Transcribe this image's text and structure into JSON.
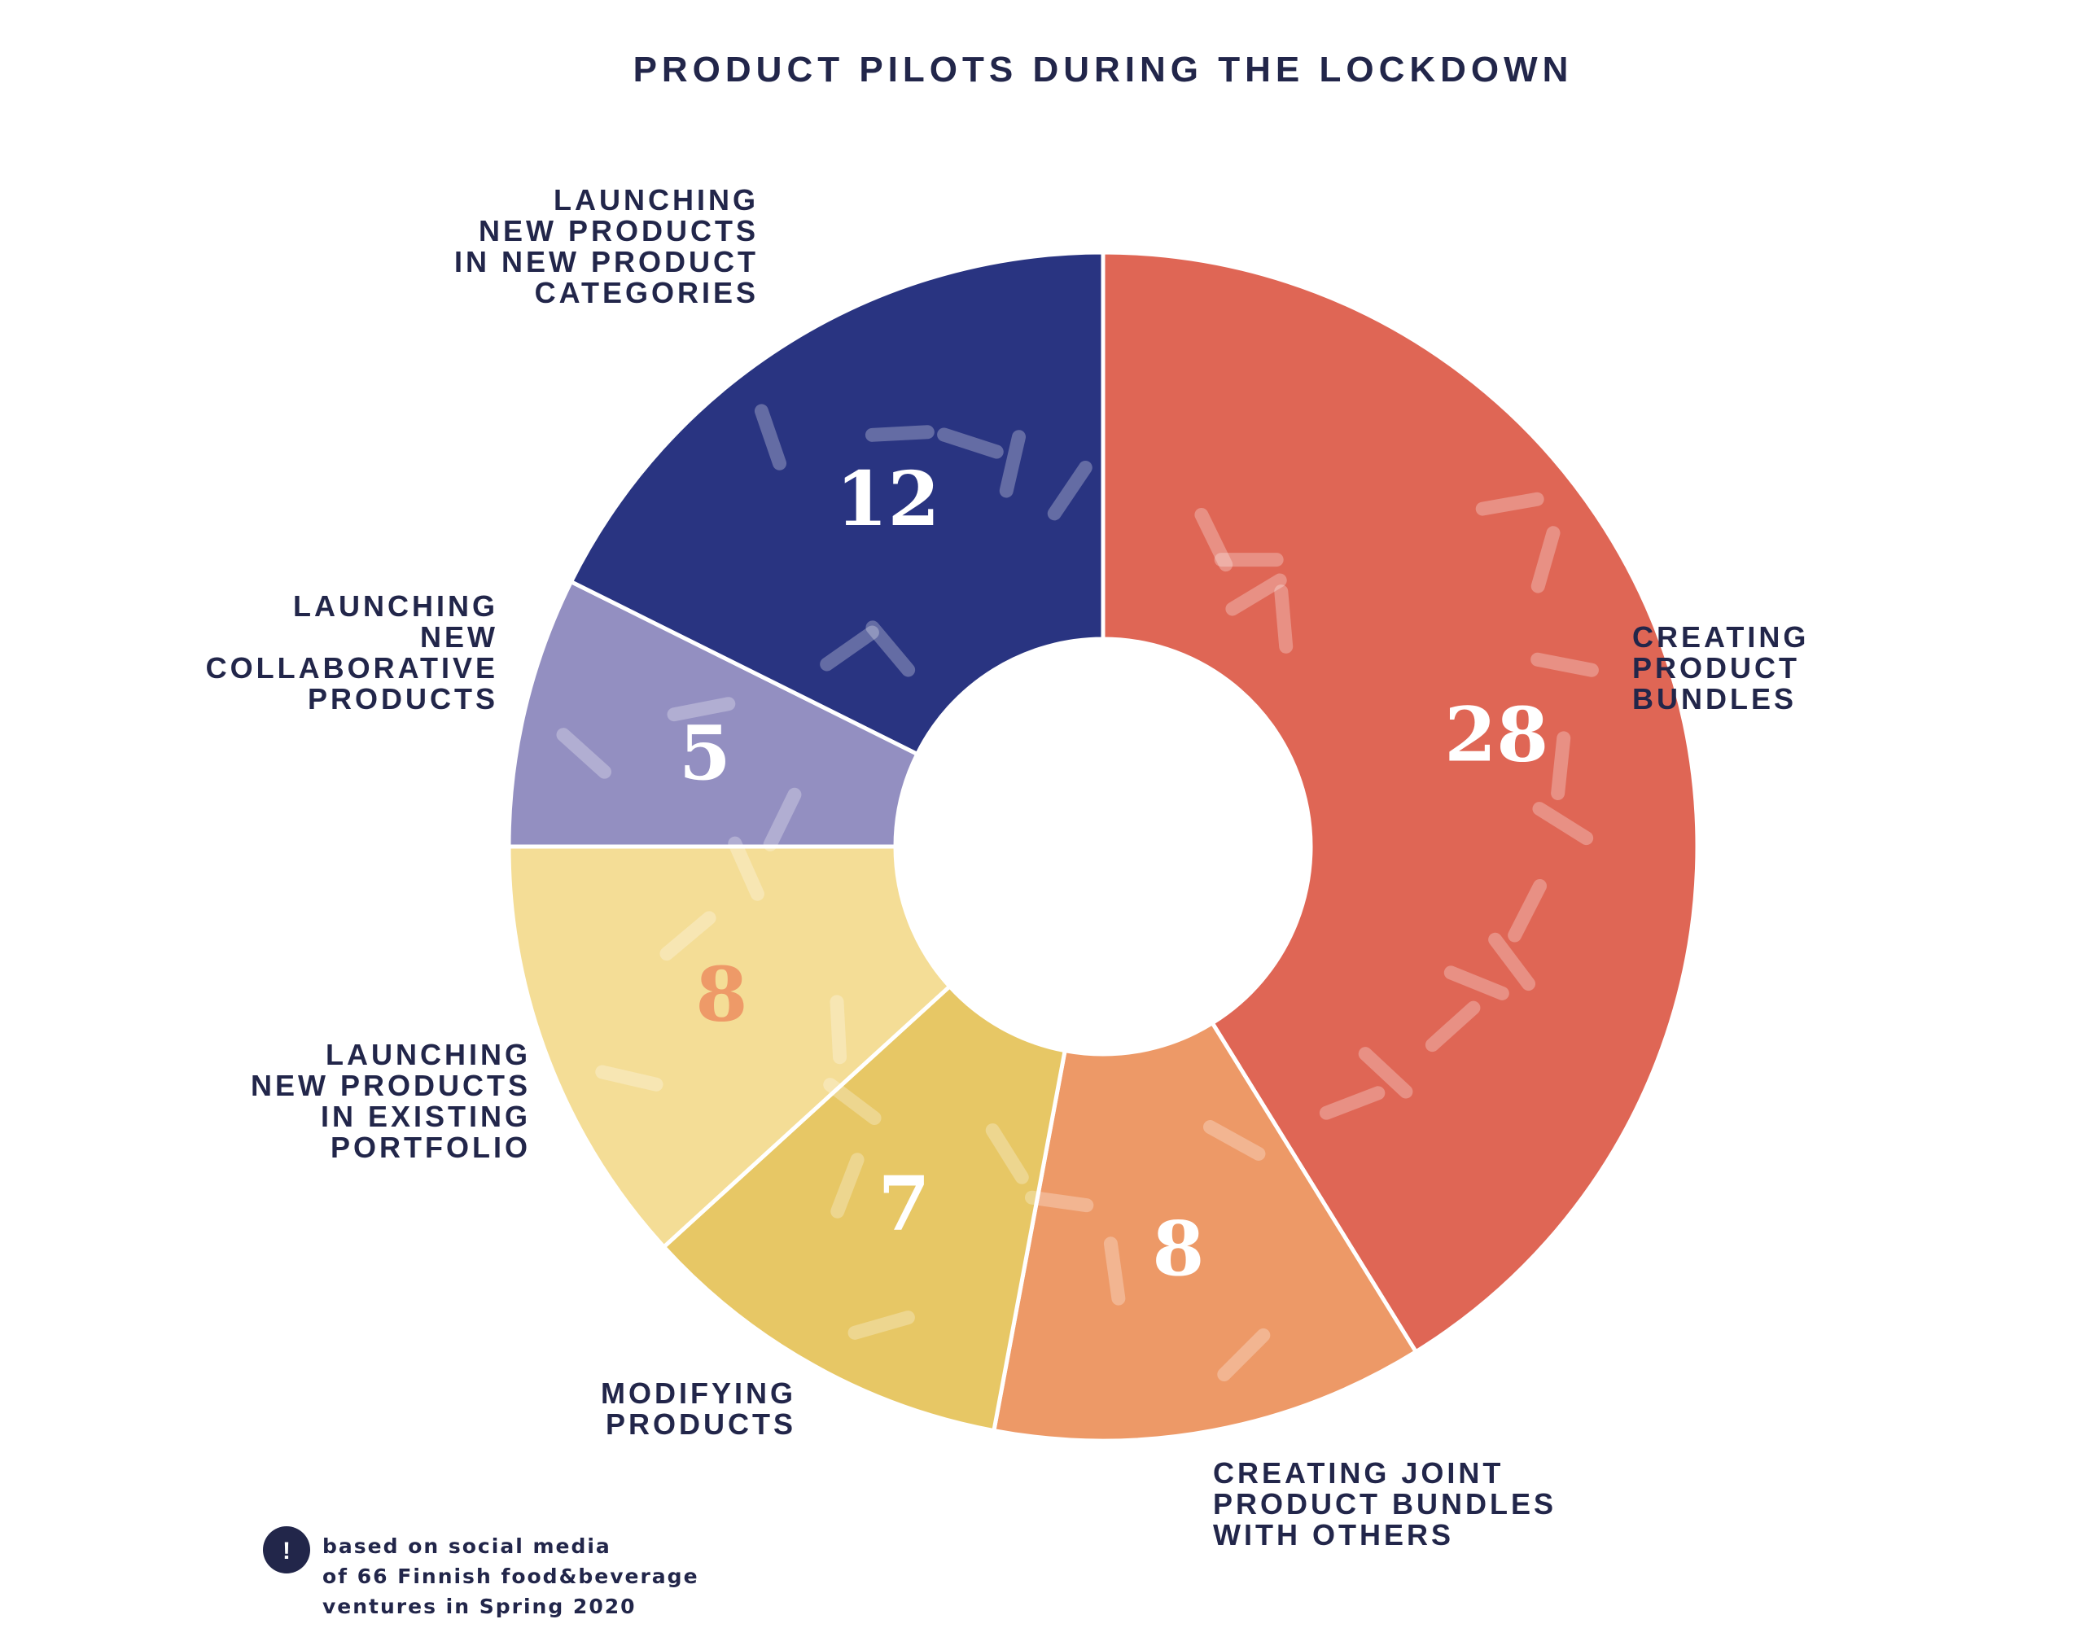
{
  "chart_data": {
    "type": "pie",
    "title": "PRODUCT PILOTS DURING THE LOCKDOWN",
    "slices": [
      {
        "label_lines": [
          "CREATING",
          "PRODUCT",
          "BUNDLES"
        ],
        "value": 28,
        "color": "#df6655",
        "value_color": "#ffffff"
      },
      {
        "label_lines": [
          "CREATING JOINT",
          "PRODUCT BUNDLES",
          "WITH OTHERS"
        ],
        "value": 8,
        "color": "#ed9967",
        "value_color": "#ffffff"
      },
      {
        "label_lines": [
          "MODIFYING",
          "PRODUCTS"
        ],
        "value": 7,
        "color": "#e7c765",
        "value_color": "#ffffff"
      },
      {
        "label_lines": [
          "LAUNCHING",
          "NEW PRODUCTS",
          "IN EXISTING",
          "PORTFOLIO"
        ],
        "value": 8,
        "color": "#f4dd96",
        "value_color": "#ee9a68"
      },
      {
        "label_lines": [
          "LAUNCHING",
          "NEW",
          "COLLABORATIVE",
          "PRODUCTS"
        ],
        "value": 5,
        "color": "#938fc1",
        "value_color": "#ffffff"
      },
      {
        "label_lines": [
          "LAUNCHING",
          "NEW PRODUCTS",
          "IN NEW PRODUCT",
          "CATEGORIES"
        ],
        "value": 12,
        "color": "#293481",
        "value_color": "#ffffff"
      }
    ],
    "text_color": "#22264a"
  },
  "note": {
    "icon": "exclamation-icon",
    "icon_glyph": "!",
    "lines": [
      "based on social media",
      "of 66 Finnish food&beverage",
      "ventures in Spring 2020"
    ]
  }
}
